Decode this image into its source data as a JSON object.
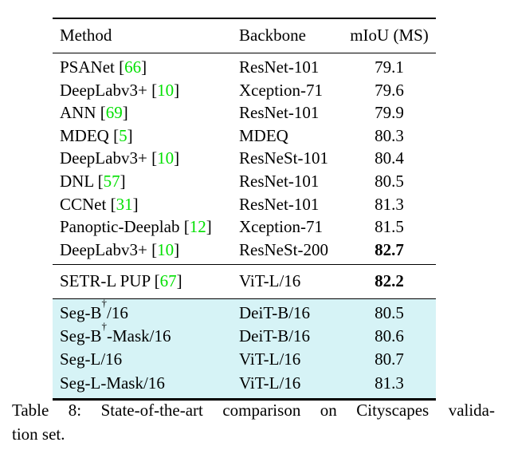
{
  "colors": {
    "citation_green": "#00e000",
    "highlight_cyan": "#d6f3f6",
    "text": "#000000",
    "background": "#ffffff"
  },
  "table": {
    "columns": [
      "Method",
      "Backbone",
      "mIoU (MS)"
    ],
    "sections": [
      {
        "name": "prior-work",
        "highlight": false,
        "rows": [
          {
            "method": "PSANet",
            "cite": "66",
            "backbone": "ResNet-101",
            "miou": "79.1",
            "bold": false
          },
          {
            "method": "DeepLabv3+",
            "cite": "10",
            "backbone": "Xception-71",
            "miou": "79.6",
            "bold": false
          },
          {
            "method": "ANN",
            "cite": "69",
            "backbone": "ResNet-101",
            "miou": "79.9",
            "bold": false
          },
          {
            "method": "MDEQ",
            "cite": "5",
            "backbone": "MDEQ",
            "miou": "80.3",
            "bold": false
          },
          {
            "method": "DeepLabv3+",
            "cite": "10",
            "backbone": "ResNeSt-101",
            "miou": "80.4",
            "bold": false
          },
          {
            "method": "DNL",
            "cite": "57",
            "backbone": "ResNet-101",
            "miou": "80.5",
            "bold": false
          },
          {
            "method": "CCNet",
            "cite": "31",
            "backbone": "ResNet-101",
            "miou": "81.3",
            "bold": false
          },
          {
            "method": "Panoptic-Deeplab",
            "cite": "12",
            "backbone": "Xception-71",
            "miou": "81.5",
            "bold": false
          },
          {
            "method": "DeepLabv3+",
            "cite": "10",
            "backbone": "ResNeSt-200",
            "miou": "82.7",
            "bold": true
          }
        ]
      },
      {
        "name": "setr",
        "highlight": false,
        "rows": [
          {
            "method": "SETR-L PUP",
            "cite": "67",
            "backbone": "ViT-L/16",
            "miou": "82.2",
            "bold": true
          }
        ]
      },
      {
        "name": "segmenter",
        "highlight": true,
        "rows": [
          {
            "method": "Seg-B",
            "sup": "†",
            "method_post": "/16",
            "backbone": "DeiT-B/16",
            "miou": "80.5",
            "bold": false
          },
          {
            "method": "Seg-B",
            "sup": "†",
            "method_post": "-Mask/16",
            "backbone": "DeiT-B/16",
            "miou": "80.6",
            "bold": false
          },
          {
            "method": "Seg-L/16",
            "backbone": "ViT-L/16",
            "miou": "80.7",
            "bold": false
          },
          {
            "method": "Seg-L-Mask/16",
            "backbone": "ViT-L/16",
            "miou": "81.3",
            "bold": false
          }
        ]
      }
    ]
  },
  "caption": {
    "line1": "Table 8: State-of-the-art comparison on Cityscapes valida-",
    "line2": "tion set."
  }
}
